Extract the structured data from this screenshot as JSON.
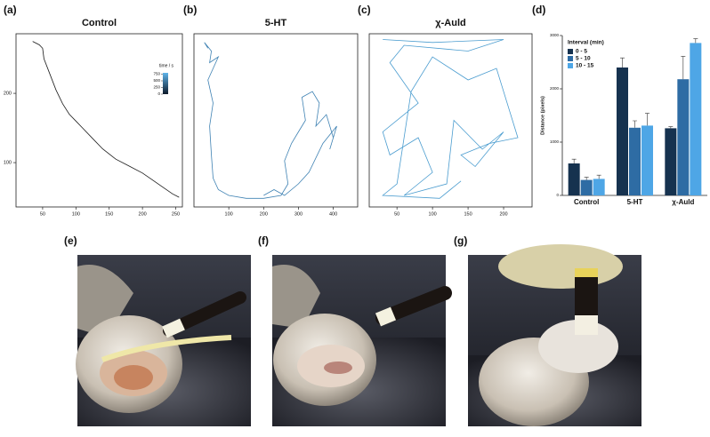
{
  "chart_data": [
    {
      "type": "trajectory",
      "panel": "(a)",
      "title": "Control",
      "color": "#1a1a1a",
      "x": [
        35,
        45,
        50,
        52,
        60,
        70,
        80,
        90,
        100,
        110,
        125,
        140,
        160,
        180,
        200,
        215,
        230,
        245,
        255
      ],
      "y": [
        275,
        270,
        265,
        250,
        230,
        205,
        185,
        170,
        160,
        150,
        135,
        120,
        105,
        95,
        85,
        75,
        65,
        55,
        50
      ],
      "xlim": [
        10,
        260
      ],
      "ylim": [
        36,
        286
      ],
      "xticks": [
        50,
        100,
        150,
        200,
        250
      ],
      "yticks": [
        100,
        200
      ],
      "colorbar": {
        "title": "time / s",
        "ticks": [
          0,
          250,
          500,
          750
        ],
        "lim": [
          0,
          800
        ],
        "colors": [
          "#0d1a2b",
          "#5fb4ea"
        ]
      }
    },
    {
      "type": "trajectory",
      "panel": "(b)",
      "title": "5-HT",
      "color": "#3f82b3",
      "x": [
        40,
        30,
        50,
        45,
        70,
        40,
        55,
        45,
        50,
        55,
        70,
        100,
        150,
        200,
        250,
        270,
        260,
        280,
        300,
        320,
        310,
        340,
        360,
        350,
        380,
        400,
        390,
        410,
        370,
        330,
        300,
        260,
        230,
        200
      ],
      "y": [
        275,
        285,
        270,
        250,
        260,
        220,
        180,
        140,
        90,
        50,
        30,
        20,
        15,
        15,
        20,
        40,
        80,
        110,
        130,
        150,
        190,
        200,
        180,
        140,
        160,
        120,
        100,
        140,
        110,
        60,
        40,
        20,
        30,
        20
      ],
      "xlim": [
        0,
        470
      ],
      "ylim": [
        0,
        300
      ],
      "xticks": [
        100,
        200,
        300,
        400
      ]
    },
    {
      "type": "trajectory",
      "panel": "(c)",
      "title": "χ-Auld",
      "color": "#4a9ccf",
      "x": [
        30,
        100,
        200,
        150,
        60,
        40,
        80,
        30,
        40,
        80,
        100,
        60,
        120,
        130,
        170,
        200,
        160,
        140,
        180,
        220,
        190,
        150,
        100,
        70,
        50,
        30,
        110,
        140
      ],
      "y": [
        290,
        285,
        290,
        270,
        280,
        250,
        180,
        130,
        90,
        120,
        60,
        20,
        40,
        150,
        100,
        130,
        70,
        90,
        110,
        120,
        240,
        220,
        260,
        200,
        40,
        20,
        15,
        45
      ],
      "xlim": [
        11,
        240
      ],
      "ylim": [
        0,
        300
      ],
      "xticks": [
        50,
        100,
        150,
        200
      ]
    },
    {
      "type": "bar",
      "panel": "(d)",
      "ylabel": "Distance (pixels)",
      "legend_title": "Interval (min)",
      "categories": [
        "Control",
        "5-HT",
        "χ-Auld"
      ],
      "series": [
        {
          "name": "0 - 5",
          "color": "#16324f",
          "values": [
            600,
            2400,
            1260
          ],
          "errors": [
            80,
            180,
            30
          ]
        },
        {
          "name": "5 - 10",
          "color": "#2e6ca4",
          "values": [
            290,
            1270,
            2180
          ],
          "errors": [
            50,
            130,
            430
          ]
        },
        {
          "name": "10 - 15",
          "color": "#4ea6e6",
          "values": [
            310,
            1310,
            2860
          ],
          "errors": [
            70,
            230,
            80
          ]
        }
      ],
      "ylim": [
        0,
        3000
      ],
      "yticks": [
        0,
        1000,
        2000,
        3000
      ]
    }
  ],
  "photos": [
    {
      "label": "(e)"
    },
    {
      "label": "(f)"
    },
    {
      "label": "(g)"
    }
  ]
}
